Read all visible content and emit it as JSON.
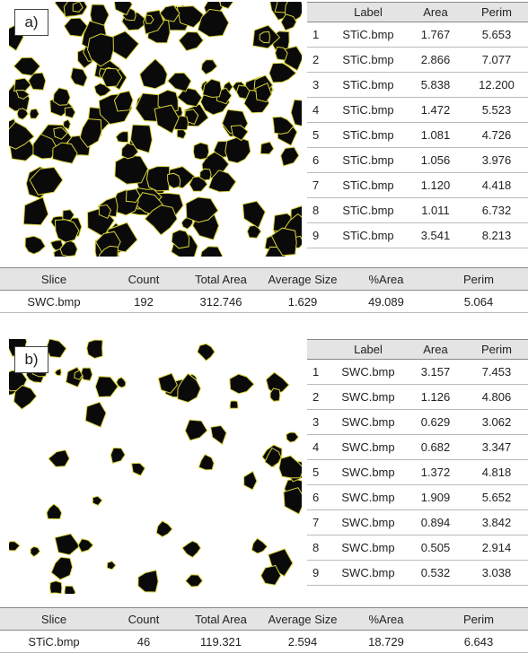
{
  "panel_a": {
    "label": "a)",
    "table": {
      "header": [
        "Label",
        "Area",
        "Perim"
      ],
      "rows": [
        [
          "1",
          "STiC.bmp",
          "1.767",
          "5.653"
        ],
        [
          "2",
          "STiC.bmp",
          "2.866",
          "7.077"
        ],
        [
          "3",
          "STiC.bmp",
          "5.838",
          "12.200"
        ],
        [
          "4",
          "STiC.bmp",
          "1.472",
          "5.523"
        ],
        [
          "5",
          "STiC.bmp",
          "1.081",
          "4.726"
        ],
        [
          "6",
          "STiC.bmp",
          "1.056",
          "3.976"
        ],
        [
          "7",
          "STiC.bmp",
          "1.120",
          "4.418"
        ],
        [
          "8",
          "STiC.bmp",
          "1.011",
          "6.732"
        ],
        [
          "9",
          "STiC.bmp",
          "3.541",
          "8.213"
        ]
      ]
    },
    "summary": {
      "header": [
        "Slice",
        "Count",
        "Total Area",
        "Average Size",
        "%Area",
        "Perim"
      ],
      "rows": [
        [
          "SWC.bmp",
          "192",
          "312.746",
          "1.629",
          "49.089",
          "5.064"
        ]
      ]
    }
  },
  "panel_b": {
    "label": "b)",
    "table": {
      "header": [
        "Label",
        "Area",
        "Perim"
      ],
      "rows": [
        [
          "1",
          "SWC.bmp",
          "3.157",
          "7.453"
        ],
        [
          "2",
          "SWC.bmp",
          "1.126",
          "4.806"
        ],
        [
          "3",
          "SWC.bmp",
          "0.629",
          "3.062"
        ],
        [
          "4",
          "SWC.bmp",
          "0.682",
          "3.347"
        ],
        [
          "5",
          "SWC.bmp",
          "1.372",
          "4.818"
        ],
        [
          "6",
          "SWC.bmp",
          "1.909",
          "5.652"
        ],
        [
          "7",
          "SWC.bmp",
          "0.894",
          "3.842"
        ],
        [
          "8",
          "SWC.bmp",
          "0.505",
          "2.914"
        ],
        [
          "9",
          "SWC.bmp",
          "0.532",
          "3.038"
        ]
      ]
    },
    "summary": {
      "header": [
        "Slice",
        "Count",
        "Total Area",
        "Average Size",
        "%Area",
        "Perim"
      ],
      "rows": [
        [
          "STiC.bmp",
          "46",
          "119.321",
          "2.594",
          "18.729",
          "6.643"
        ]
      ]
    }
  }
}
